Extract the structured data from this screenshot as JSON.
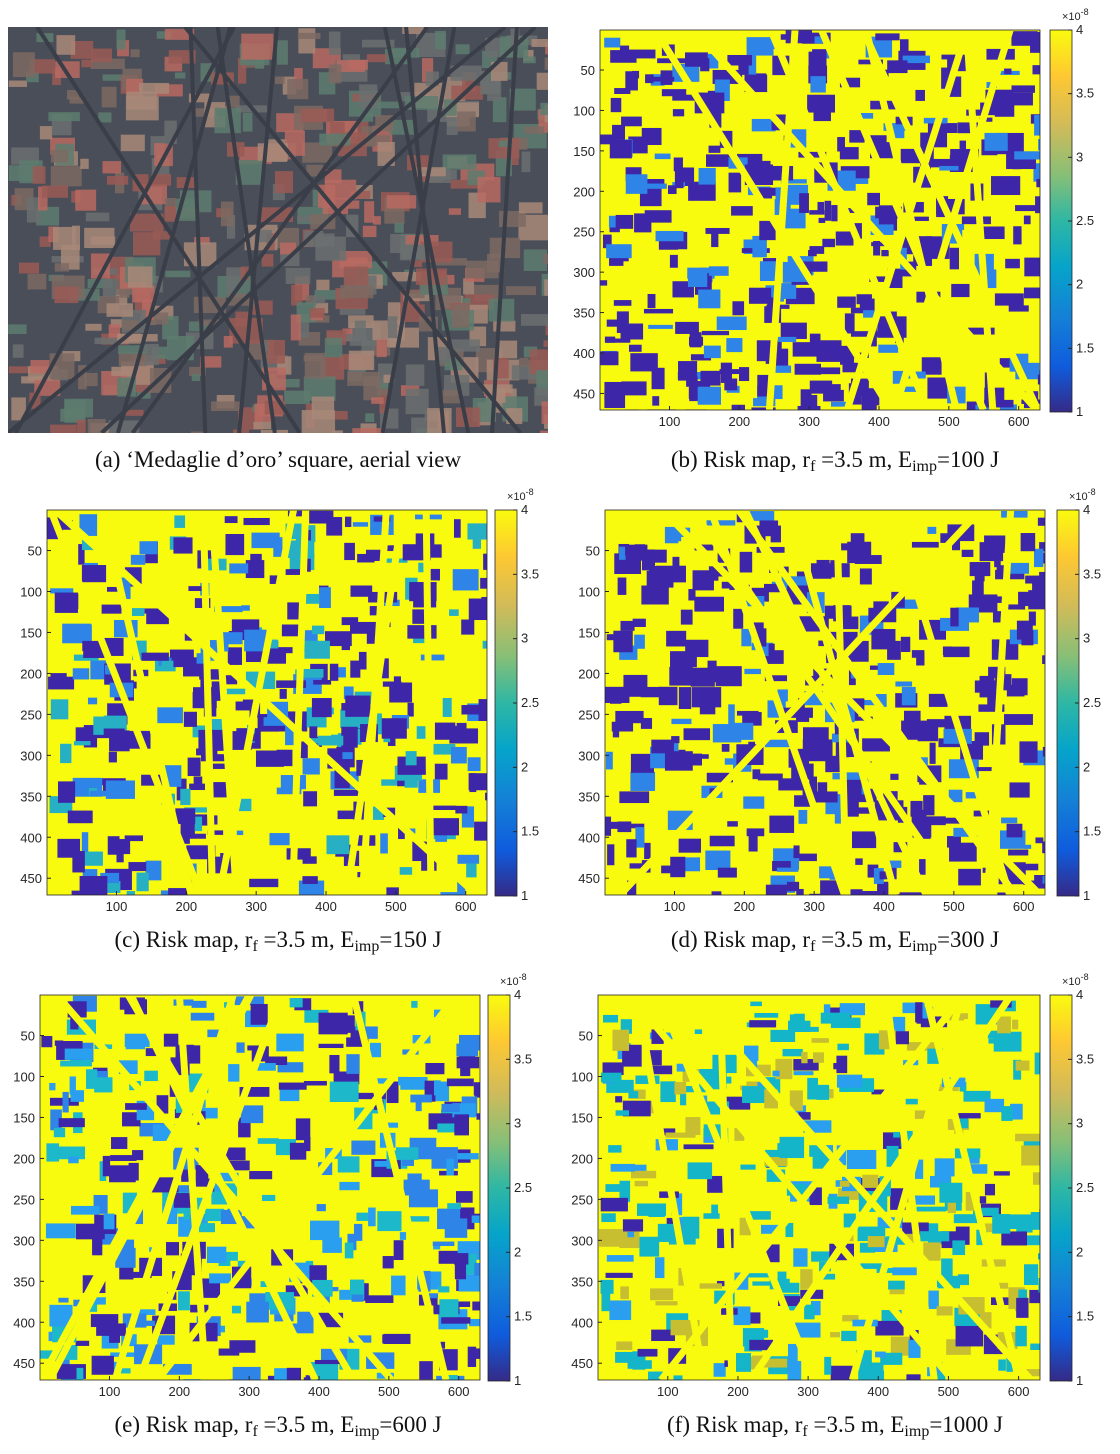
{
  "chart_data": [
    {
      "type": "image",
      "caption": [
        {
          "text": "(a) ‘Medaglie d’oro’ square, aerial view"
        }
      ]
    },
    {
      "type": "heatmap",
      "caption": [
        {
          "text": "(b) Risk map, r"
        },
        {
          "sub": "f"
        },
        {
          "text": " =3.5 m, E"
        },
        {
          "sub": "imp"
        },
        {
          "text": "=100 J"
        }
      ],
      "xlim": [
        0.5,
        630.5
      ],
      "ylim": [
        0.5,
        470.5
      ],
      "xticks": [
        100,
        200,
        300,
        400,
        500,
        600
      ],
      "yticks": [
        50,
        100,
        150,
        200,
        250,
        300,
        350,
        400,
        450
      ],
      "clim": [
        1,
        4
      ],
      "cticks": [
        1,
        1.5,
        2,
        2.5,
        3,
        3.5,
        4
      ],
      "colorbar_exponent": {
        "base": "×10",
        "exponent": "-8"
      }
    },
    {
      "type": "heatmap",
      "caption": [
        {
          "text": "(c) Risk map, r"
        },
        {
          "sub": "f"
        },
        {
          "text": " =3.5 m, E"
        },
        {
          "sub": "imp"
        },
        {
          "text": "=150 J"
        }
      ],
      "xlim": [
        0.5,
        630.5
      ],
      "ylim": [
        0.5,
        470.5
      ],
      "xticks": [
        100,
        200,
        300,
        400,
        500,
        600
      ],
      "yticks": [
        50,
        100,
        150,
        200,
        250,
        300,
        350,
        400,
        450
      ],
      "clim": [
        1,
        4
      ],
      "cticks": [
        1,
        1.5,
        2,
        2.5,
        3,
        3.5,
        4
      ],
      "colorbar_exponent": {
        "base": "×10",
        "exponent": "-8"
      }
    },
    {
      "type": "heatmap",
      "caption": [
        {
          "text": "(d) Risk map, r"
        },
        {
          "sub": "f"
        },
        {
          "text": " =3.5 m, E"
        },
        {
          "sub": "imp"
        },
        {
          "text": "=300 J"
        }
      ],
      "xlim": [
        0.5,
        630.5
      ],
      "ylim": [
        0.5,
        470.5
      ],
      "xticks": [
        100,
        200,
        300,
        400,
        500,
        600
      ],
      "yticks": [
        50,
        100,
        150,
        200,
        250,
        300,
        350,
        400,
        450
      ],
      "clim": [
        1,
        4
      ],
      "cticks": [
        1,
        1.5,
        2,
        2.5,
        3,
        3.5,
        4
      ],
      "colorbar_exponent": {
        "base": "×10",
        "exponent": "-8"
      }
    },
    {
      "type": "heatmap",
      "caption": [
        {
          "text": "(e) Risk map, r"
        },
        {
          "sub": "f"
        },
        {
          "text": " =3.5 m, E"
        },
        {
          "sub": "imp"
        },
        {
          "text": "=600 J"
        }
      ],
      "xlim": [
        0.5,
        630.5
      ],
      "ylim": [
        0.5,
        470.5
      ],
      "xticks": [
        100,
        200,
        300,
        400,
        500,
        600
      ],
      "yticks": [
        50,
        100,
        150,
        200,
        250,
        300,
        350,
        400,
        450
      ],
      "clim": [
        1,
        4
      ],
      "cticks": [
        1,
        1.5,
        2,
        2.5,
        3,
        3.5,
        4
      ],
      "colorbar_exponent": {
        "base": "×10",
        "exponent": "-8"
      }
    },
    {
      "type": "heatmap",
      "caption": [
        {
          "text": "(f) Risk map, r"
        },
        {
          "sub": "f"
        },
        {
          "text": " =3.5 m, E"
        },
        {
          "sub": "imp"
        },
        {
          "text": "=1000 J"
        }
      ],
      "xlim": [
        0.5,
        630.5
      ],
      "ylim": [
        0.5,
        470.5
      ],
      "xticks": [
        100,
        200,
        300,
        400,
        500,
        600
      ],
      "yticks": [
        50,
        100,
        150,
        200,
        250,
        300,
        350,
        400,
        450
      ],
      "clim": [
        1,
        4
      ],
      "cticks": [
        1,
        1.5,
        2,
        2.5,
        3,
        3.5,
        4
      ],
      "colorbar_exponent": {
        "base": "×10",
        "exponent": "-8"
      }
    }
  ]
}
